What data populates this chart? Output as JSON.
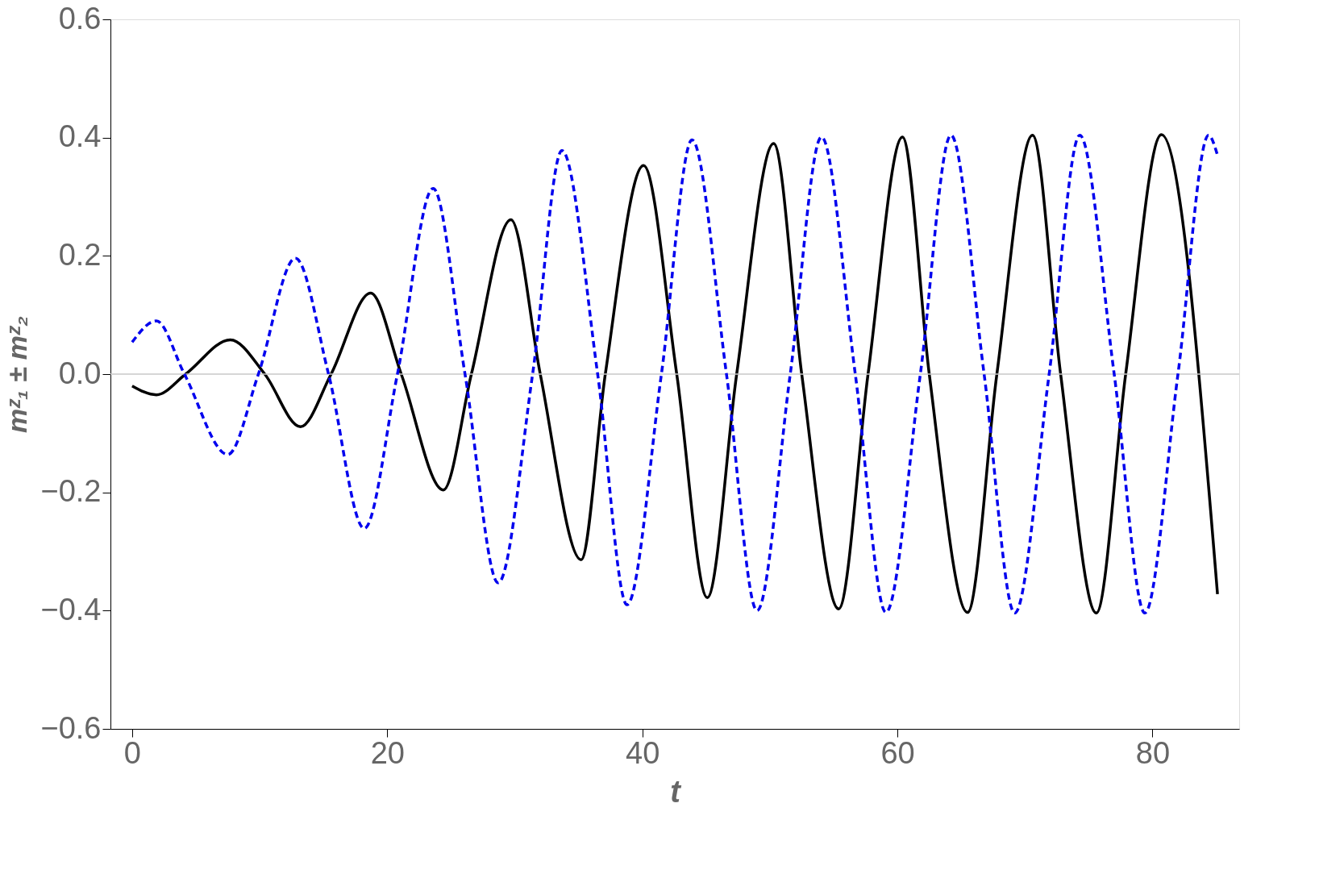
{
  "chart_data": {
    "type": "line",
    "xlabel": "t",
    "ylabel": "mᶻ₁ ± mᶻ₂",
    "xlim": [
      -1.7,
      86.8
    ],
    "ylim": [
      -0.6,
      0.6
    ],
    "xticks": [
      0,
      20,
      40,
      60,
      80
    ],
    "yticks": [
      {
        "value": -0.6,
        "label": "−0.6"
      },
      {
        "value": -0.4,
        "label": "−0.4"
      },
      {
        "value": -0.2,
        "label": "−0.2"
      },
      {
        "value": 0,
        "label": "0.0"
      },
      0.2,
      0.4,
      0.6
    ],
    "grid": false,
    "marker": "none",
    "ref_lines": [
      {
        "axis": "y",
        "value": 0,
        "color": "#c8c8c8"
      }
    ],
    "series": [
      {
        "color": "#000000",
        "line_style": "solid",
        "x": [
          0,
          1.9,
          4.2,
          7.7,
          10.4,
          13.2,
          15.6,
          18.7,
          21.1,
          24.4,
          26.6,
          29.7,
          32,
          35.2,
          37.1,
          40.1,
          42.7,
          45.1,
          47.4,
          50.3,
          52.5,
          55.4,
          57.7,
          60.4,
          62.5,
          65.5,
          67.8,
          70.6,
          72.8,
          75.6,
          77.9,
          80.7,
          85.1
        ],
        "values": [
          -0.02,
          -0.035,
          0,
          0.058,
          0,
          -0.089,
          0,
          0.137,
          0,
          -0.196,
          0,
          0.261,
          0,
          -0.314,
          0,
          0.353,
          0,
          -0.378,
          0,
          0.39,
          0,
          -0.397,
          0,
          0.401,
          0,
          -0.403,
          0,
          0.404,
          0,
          -0.404,
          0,
          0.405,
          -0.372
        ]
      },
      {
        "color": "#0000ee",
        "line_style": "dashed",
        "x": [
          0,
          1.9,
          4.1,
          7.5,
          9.9,
          12.8,
          15.4,
          18.2,
          20.8,
          23.6,
          26.1,
          28.7,
          31.4,
          33.7,
          36.5,
          38.8,
          41.5,
          43.9,
          46.6,
          49,
          51.6,
          54.05,
          56.7,
          59.1,
          61.8,
          64.2,
          66.8,
          69.2,
          71.9,
          74.3,
          77,
          79.4,
          82,
          84.4,
          85.1
        ],
        "values": [
          0.054,
          0.09,
          0,
          -0.136,
          0,
          0.196,
          0,
          -0.261,
          0,
          0.314,
          0,
          -0.353,
          0,
          0.378,
          0,
          -0.39,
          0,
          0.396,
          0,
          -0.4,
          0,
          0.401,
          0,
          -0.403,
          0,
          0.404,
          0,
          -0.404,
          0,
          0.404,
          0,
          -0.404,
          0,
          0.404,
          0.37
        ]
      }
    ]
  }
}
